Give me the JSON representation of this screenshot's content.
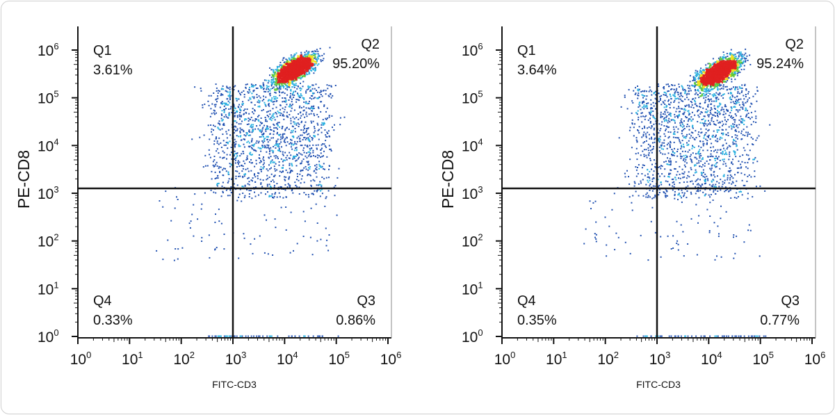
{
  "chart_data": [
    {
      "type": "scatter",
      "subtype": "flow-cytometry-density-dot-plot",
      "xlabel": "FITC-CD3",
      "ylabel": "PE-CD8",
      "xscale": "log",
      "yscale": "log",
      "xlim": [
        1,
        1000000
      ],
      "ylim": [
        1,
        1000000
      ],
      "x_tick_exponents": [
        "0",
        "1",
        "2",
        "3",
        "4",
        "5",
        "6"
      ],
      "y_tick_exponents": [
        "0",
        "1",
        "2",
        "3",
        "4",
        "5",
        "6"
      ],
      "tick_base": "10",
      "gate": {
        "x": 1000,
        "y": 1000
      },
      "quadrants": [
        {
          "name": "Q1",
          "percent": "3.61%"
        },
        {
          "name": "Q2",
          "percent": "95.20%"
        },
        {
          "name": "Q3",
          "percent": "0.86%"
        },
        {
          "name": "Q4",
          "percent": "0.33%"
        }
      ],
      "main_population": {
        "x": 15000,
        "y": 400000
      }
    },
    {
      "type": "scatter",
      "subtype": "flow-cytometry-density-dot-plot",
      "xlabel": "FITC-CD3",
      "ylabel": "PE-CD8",
      "xscale": "log",
      "yscale": "log",
      "xlim": [
        1,
        1000000
      ],
      "ylim": [
        1,
        1000000
      ],
      "x_tick_exponents": [
        "0",
        "1",
        "2",
        "3",
        "4",
        "5",
        "6"
      ],
      "y_tick_exponents": [
        "0",
        "1",
        "2",
        "3",
        "4",
        "5",
        "6"
      ],
      "tick_base": "10",
      "gate": {
        "x": 1000,
        "y": 1000
      },
      "quadrants": [
        {
          "name": "Q1",
          "percent": "3.64%"
        },
        {
          "name": "Q2",
          "percent": "95.24%"
        },
        {
          "name": "Q3",
          "percent": "0.77%"
        },
        {
          "name": "Q4",
          "percent": "0.35%"
        }
      ],
      "main_population": {
        "x": 15000,
        "y": 350000
      }
    }
  ],
  "colors": {
    "low": "#1f4fb0",
    "mid": "#2ab0e0",
    "green": "#5cc83c",
    "yellow": "#f0e020",
    "high": "#e02020",
    "axis": "#111111"
  }
}
